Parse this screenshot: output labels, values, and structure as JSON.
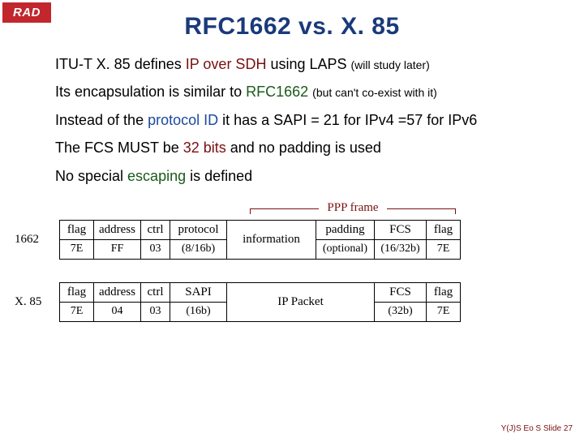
{
  "logo": "RAD",
  "title": "RFC1662 vs. X. 85",
  "bullets": {
    "b1a": "ITU-T X. 85 defines ",
    "b1kw": "IP over SDH",
    "b1b": " using LAPS ",
    "b1sm": "(will study later)",
    "b2a": "Its encapsulation is similar to ",
    "b2kw": "RFC1662",
    "b2b": " ",
    "b2sm": "(but can't co-exist with it)",
    "b3a": "Instead of the ",
    "b3kw": "protocol ID",
    "b3b": " it has a SAPI = 21 for IPv4  =57 for IPv6",
    "b4a": "The FCS MUST be ",
    "b4kw": "32 bits",
    "b4b": " and no padding is used",
    "b5a": "No special ",
    "b5kw": "escaping",
    "b5b": " is defined"
  },
  "frame_label": "PPP frame",
  "t1662": {
    "label": "1662",
    "h": [
      "flag",
      "address",
      "ctrl",
      "protocol",
      "information",
      "padding",
      "FCS",
      "flag"
    ],
    "v": [
      "7E",
      "FF",
      "03",
      "(8/16b)",
      "",
      "(optional)",
      "(16/32b)",
      "7E"
    ],
    "widths": [
      42,
      56,
      36,
      70,
      110,
      72,
      64,
      42
    ],
    "no_border_idx": 4
  },
  "t85": {
    "label": "X. 85",
    "h": [
      "flag",
      "address",
      "ctrl",
      "SAPI",
      "IP Packet",
      "FCS",
      "flag"
    ],
    "v": [
      "7E",
      "04",
      "03",
      "(16b)",
      "",
      "(32b)",
      "7E"
    ],
    "widths": [
      42,
      56,
      36,
      70,
      182,
      64,
      42
    ],
    "no_border_idx": 4
  },
  "footer": "Y(J)S  Eo S  Slide 27",
  "colors": {
    "title": "#1a3a7a",
    "kw_red": "#7a1010",
    "kw_green": "#1a5a1a",
    "kw_blue": "#1a4aa0",
    "logo_bg": "#c1272d"
  }
}
